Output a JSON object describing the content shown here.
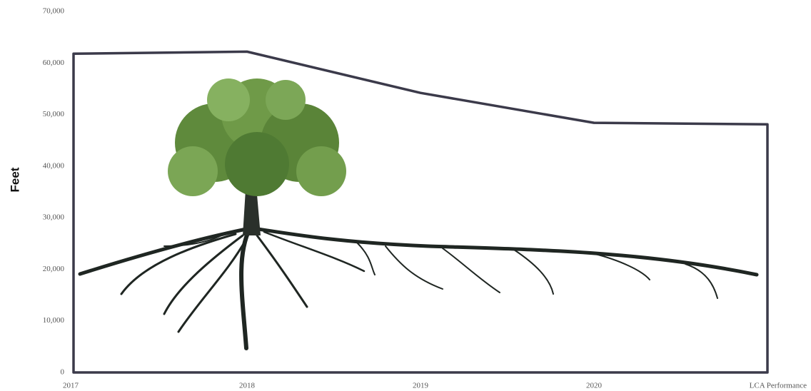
{
  "chart_data": {
    "type": "area",
    "ylabel": "Feet",
    "categories": [
      "2017",
      "2018",
      "2019",
      "2020",
      "LCA Performance"
    ],
    "values": [
      61800,
      62200,
      54200,
      48400,
      48100
    ],
    "color": "#3b3a4a",
    "fill": "#ffffff",
    "ylim": [
      0,
      70000
    ],
    "yticks": [
      0,
      {
        "value": 10000,
        "label": "10,000"
      },
      {
        "value": 20000,
        "label": "20,000"
      },
      {
        "value": 30000,
        "label": "30,000"
      },
      {
        "value": 40000,
        "label": "40,000"
      },
      {
        "value": 50000,
        "label": "50,000"
      },
      {
        "value": 60000,
        "label": "60,000"
      },
      {
        "value": 70000,
        "label": "70,000"
      }
    ]
  }
}
